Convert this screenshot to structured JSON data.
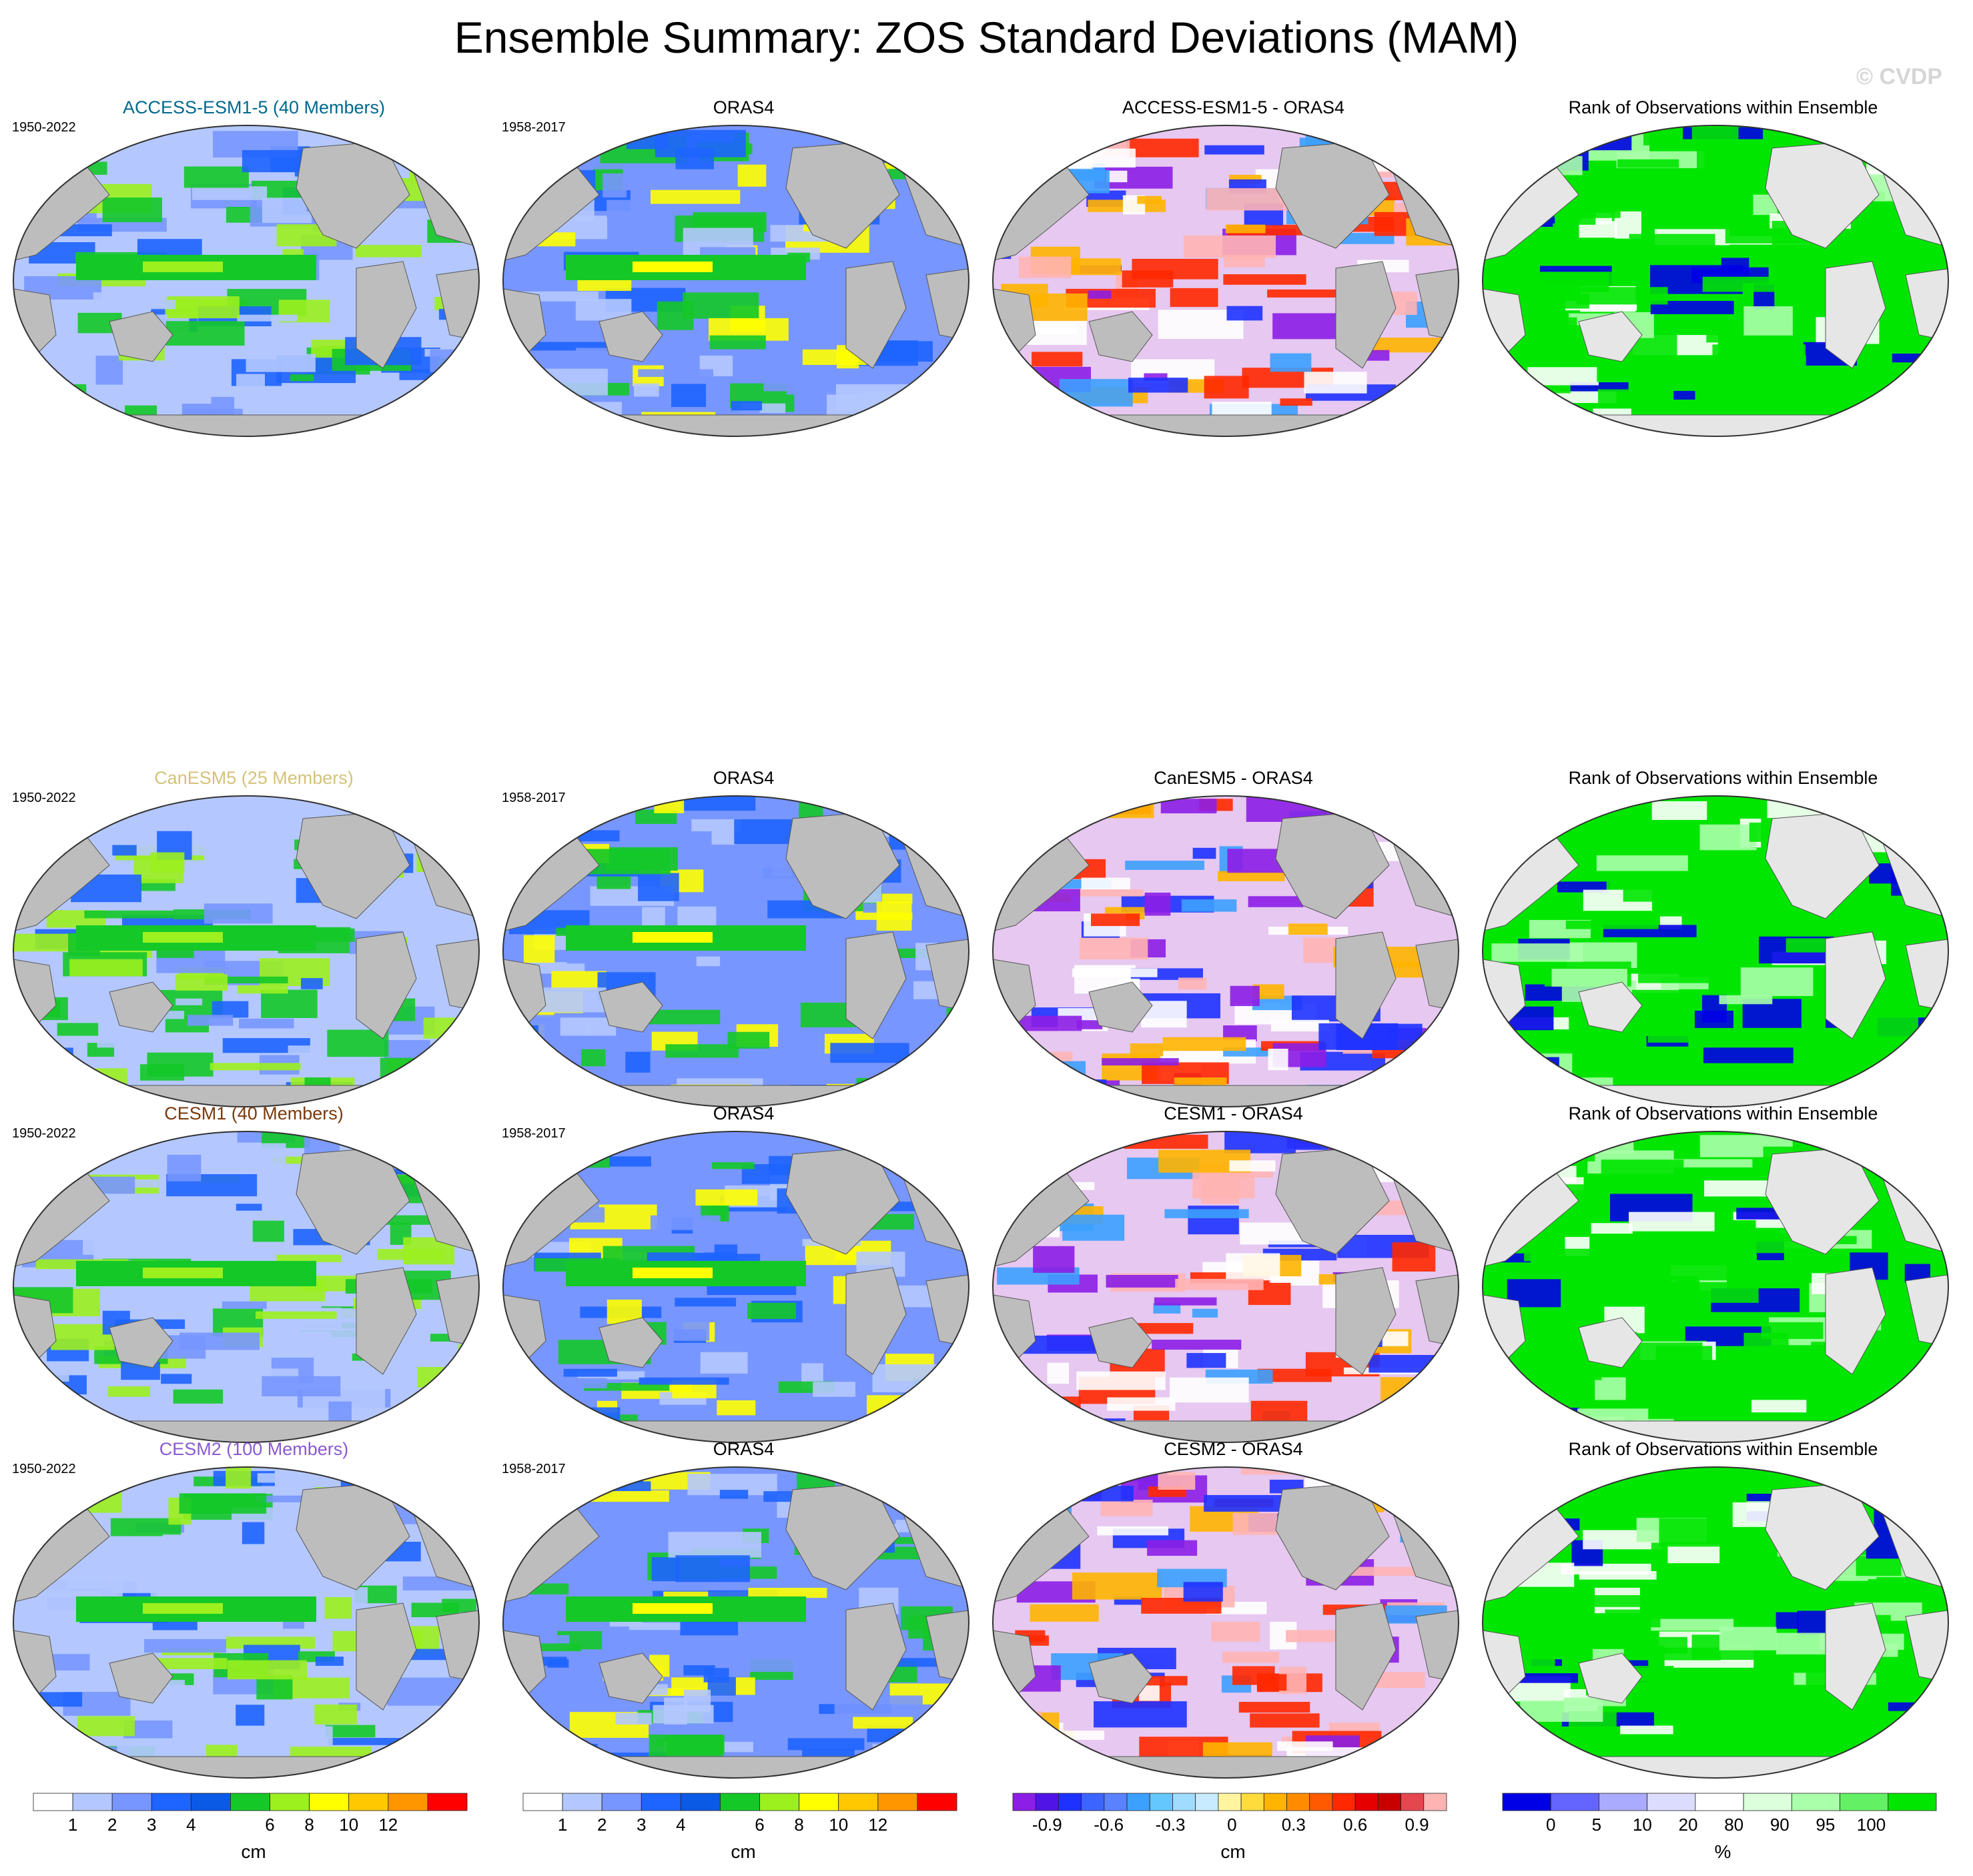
{
  "title": "Ensemble Summary: ZOS Standard Deviations (MAM)",
  "watermark": "© CVDP",
  "rows": [
    {
      "model": "ACCESS-ESM1-5 (40 Members)",
      "model_color": "#00698f",
      "model_years": "1950-2022",
      "obs": "ORAS4",
      "obs_years": "1958-2017",
      "diff": "ACCESS-ESM1-5 - ORAS4",
      "rank": "Rank of Observations within Ensemble"
    },
    {
      "model": "CanESM5 (25 Members)",
      "model_color": "#d4c27a",
      "model_years": "1950-2022",
      "obs": "ORAS4",
      "obs_years": "1958-2017",
      "diff": "CanESM5 - ORAS4",
      "rank": "Rank of Observations within Ensemble"
    },
    {
      "model": "CESM1 (40 Members)",
      "model_color": "#7a3a0c",
      "model_years": "1950-2022",
      "obs": "ORAS4",
      "obs_years": "1958-2017",
      "diff": "CESM1 - ORAS4",
      "rank": "Rank of Observations within Ensemble"
    },
    {
      "model": "CESM2 (100 Members)",
      "model_color": "#8a5ad0",
      "model_years": "1950-2022",
      "obs": "ORAS4",
      "obs_years": "1958-2017",
      "diff": "CESM2 - ORAS4",
      "rank": "Rank of Observations within Ensemble"
    }
  ],
  "colorbars": [
    {
      "unit": "cm",
      "labels": [
        "1",
        "2",
        "3",
        "4",
        "6",
        "8",
        "10",
        "12"
      ],
      "colors": [
        "#ffffff",
        "#b4c8ff",
        "#7896ff",
        "#1e64ff",
        "#0a5ae6",
        "#14c828",
        "#9bf01e",
        "#ffff00",
        "#ffc800",
        "#ff9600",
        "#ff0000"
      ]
    },
    {
      "unit": "cm",
      "labels": [
        "1",
        "2",
        "3",
        "4",
        "6",
        "8",
        "10",
        "12"
      ],
      "colors": [
        "#ffffff",
        "#b4c8ff",
        "#7896ff",
        "#1e64ff",
        "#0a5ae6",
        "#14c828",
        "#9bf01e",
        "#ffff00",
        "#ffc800",
        "#ff9600",
        "#ff0000"
      ]
    },
    {
      "unit": "cm",
      "labels": [
        "-0.9",
        "-0.6",
        "-0.3",
        "0",
        "0.3",
        "0.6",
        "0.9"
      ],
      "colors": [
        "#8c1ee6",
        "#5014e6",
        "#1e32ff",
        "#3c64ff",
        "#5a82ff",
        "#3ca0ff",
        "#64c8ff",
        "#a0dcff",
        "#c8ebff",
        "#fff5a0",
        "#ffdc3c",
        "#ffb400",
        "#ff8c00",
        "#ff5a00",
        "#ff2800",
        "#e60000",
        "#c80000",
        "#e64650",
        "#ffb4b4"
      ]
    },
    {
      "unit": "%",
      "labels": [
        "0",
        "5",
        "10",
        "20",
        "80",
        "90",
        "95",
        "100"
      ],
      "colors": [
        "#0000e6",
        "#6464ff",
        "#aaaaff",
        "#dcdcff",
        "#ffffff",
        "#dcffdc",
        "#aaffaa",
        "#64f064",
        "#00e600"
      ]
    }
  ]
}
